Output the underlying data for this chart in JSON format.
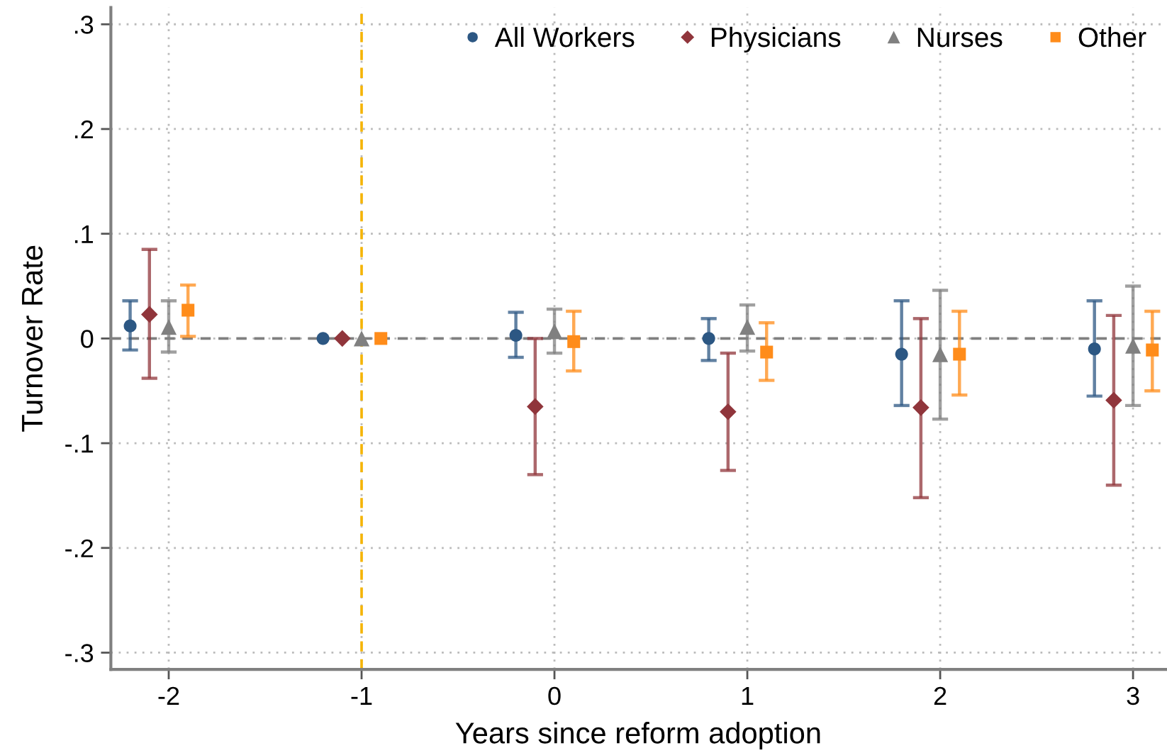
{
  "chart_data": {
    "type": "scatter",
    "xlabel": "Years since reform adoption",
    "ylabel": "Turnover Rate",
    "xlim": [
      -2.3,
      3.17
    ],
    "xticks": [
      -2,
      -1,
      0,
      1,
      2,
      3
    ],
    "ylim": [
      -0.316,
      0.316
    ],
    "yticks": [
      {
        "value": -0.3,
        "label": "-.3"
      },
      {
        "value": -0.2,
        "label": "-.2"
      },
      {
        "value": -0.1,
        "label": "-.1"
      },
      0,
      {
        "value": 0.1,
        "label": ".1"
      },
      {
        "value": 0.2,
        "label": ".2"
      },
      {
        "value": 0.3,
        "label": ".3"
      }
    ],
    "grid": true,
    "legend": "top right",
    "ref_lines": [
      {
        "axis": "y",
        "value": 0,
        "color": "#808080",
        "line_style": "dashed"
      },
      {
        "axis": "x",
        "value": -1,
        "color": "#f5b400",
        "line_style": "dashed"
      }
    ],
    "series": [
      {
        "name": "All Workers",
        "color": "#2c5783",
        "marker": "circle",
        "x": [
          -2.2,
          -1.2,
          -0.2,
          0.8,
          1.8,
          2.8
        ],
        "values": [
          0.012,
          0,
          0.003,
          0,
          -0.015,
          -0.01
        ],
        "errors": [
          [
            -0.011,
            0.036
          ],
          null,
          [
            -0.018,
            0.025
          ],
          [
            -0.021,
            0.019
          ],
          [
            -0.064,
            0.036
          ],
          [
            -0.055,
            0.036
          ]
        ]
      },
      {
        "name": "Physicians",
        "color": "#90353b",
        "marker": "diamond",
        "x": [
          -2.1,
          -1.1,
          -0.1,
          0.9,
          1.9,
          2.9
        ],
        "values": [
          0.023,
          0,
          -0.065,
          -0.07,
          -0.066,
          -0.059
        ],
        "errors": [
          [
            -0.038,
            0.085
          ],
          null,
          [
            -0.13,
            0.0
          ],
          [
            -0.126,
            -0.014
          ],
          [
            -0.152,
            0.019
          ],
          [
            -0.14,
            0.022
          ]
        ]
      },
      {
        "name": "Nurses",
        "color": "#808080",
        "marker": "triangle",
        "x": [
          -2.0,
          -1.0,
          0.0,
          1.0,
          2.0,
          3.0
        ],
        "values": [
          0.011,
          0,
          0.007,
          0.011,
          -0.015,
          -0.007
        ],
        "errors": [
          [
            -0.013,
            0.036
          ],
          null,
          [
            -0.014,
            0.028
          ],
          [
            -0.012,
            0.032
          ],
          [
            -0.077,
            0.046
          ],
          [
            -0.064,
            0.05
          ]
        ]
      },
      {
        "name": "Other",
        "color": "#ff8c1a",
        "marker": "square",
        "x": [
          -1.9,
          -0.9,
          0.1,
          1.1,
          2.1,
          3.1
        ],
        "values": [
          0.027,
          0,
          -0.003,
          -0.013,
          -0.015,
          -0.011
        ],
        "errors": [
          [
            0.002,
            0.051
          ],
          null,
          [
            -0.031,
            0.026
          ],
          [
            -0.04,
            0.015
          ],
          [
            -0.054,
            0.026
          ],
          [
            -0.05,
            0.026
          ]
        ]
      }
    ]
  }
}
